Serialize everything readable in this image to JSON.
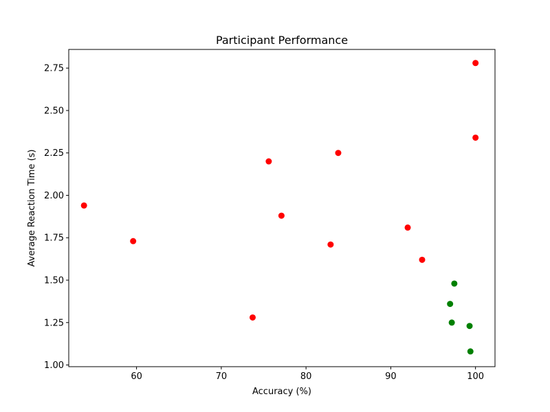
{
  "chart_data": {
    "type": "scatter",
    "title": "Participant Performance",
    "xlabel": "Accuracy (%)",
    "ylabel": "Average Reaction Time (s)",
    "xlim": [
      52,
      102.3
    ],
    "ylim": [
      0.99,
      2.86
    ],
    "xticks": [
      60,
      70,
      80,
      90,
      100
    ],
    "yticks": [
      1.0,
      1.25,
      1.5,
      1.75,
      2.0,
      2.25,
      2.5,
      2.75
    ],
    "ytick_decimals": 2,
    "grid": false,
    "legend": "none",
    "colors": {
      "red": "#ff0000",
      "green": "#008000"
    },
    "points": [
      {
        "x": 53.8,
        "y": 1.94,
        "color": "red"
      },
      {
        "x": 59.6,
        "y": 1.73,
        "color": "red"
      },
      {
        "x": 73.7,
        "y": 1.28,
        "color": "red"
      },
      {
        "x": 75.6,
        "y": 2.2,
        "color": "red"
      },
      {
        "x": 77.1,
        "y": 1.88,
        "color": "red"
      },
      {
        "x": 82.9,
        "y": 1.71,
        "color": "red"
      },
      {
        "x": 83.8,
        "y": 2.25,
        "color": "red"
      },
      {
        "x": 92.0,
        "y": 1.81,
        "color": "red"
      },
      {
        "x": 93.7,
        "y": 1.62,
        "color": "red"
      },
      {
        "x": 100.0,
        "y": 2.78,
        "color": "red"
      },
      {
        "x": 100.0,
        "y": 2.34,
        "color": "red"
      },
      {
        "x": 97.0,
        "y": 1.36,
        "color": "green"
      },
      {
        "x": 97.2,
        "y": 1.25,
        "color": "green"
      },
      {
        "x": 97.5,
        "y": 1.48,
        "color": "green"
      },
      {
        "x": 99.3,
        "y": 1.23,
        "color": "green"
      },
      {
        "x": 99.4,
        "y": 1.08,
        "color": "green"
      }
    ]
  }
}
